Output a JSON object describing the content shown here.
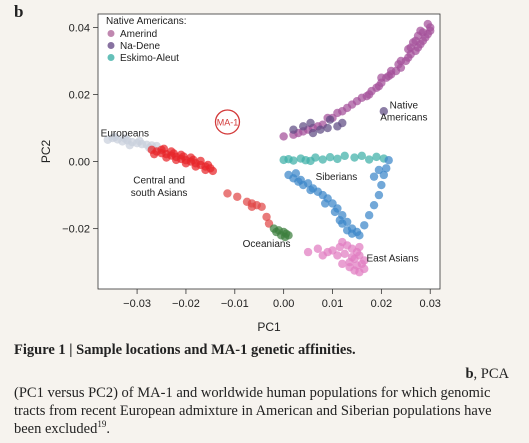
{
  "panel_label": "b",
  "caption": {
    "title": "Figure 1 | Sample locations and MA-1 genetic affinities.",
    "panel_ref": "b",
    "panel_suffix": ", PCA",
    "body": "(PC1 versus PC2) of MA-1 and worldwide human populations for which genomic tracts from recent European admixture in American and Siberian populations have been excluded",
    "ref": "19",
    "end": "."
  },
  "chart_data": {
    "type": "scatter",
    "xlabel": "PC1",
    "ylabel": "PC2",
    "xlim": [
      -0.038,
      0.032
    ],
    "ylim": [
      -0.038,
      0.044
    ],
    "xticks": [
      -0.03,
      -0.02,
      -0.01,
      0.0,
      0.01,
      0.02,
      0.03
    ],
    "xtick_labels": [
      "−0.03",
      "−0.02",
      "−0.01",
      "0.00",
      "0.01",
      "0.02",
      "0.03"
    ],
    "yticks": [
      -0.02,
      0.0,
      0.02,
      0.04
    ],
    "ytick_labels": [
      "−0.02",
      "0.00",
      "0.02",
      "0.04"
    ],
    "grid": false,
    "legend_position": "top-left",
    "legend": {
      "title": "Native Americans:",
      "entries": [
        {
          "name": "Amerind",
          "color": "#b06a9c"
        },
        {
          "name": "Na-Dene",
          "color": "#6a4f8a"
        },
        {
          "name": "Eskimo-Aleut",
          "color": "#3fb0a8"
        }
      ]
    },
    "annotations": [
      {
        "text": "MA-1",
        "x": -0.0115,
        "y": 0.0118,
        "color": "#d33a3a"
      },
      {
        "text": "Europeans",
        "x": -0.0325,
        "y": 0.0075
      },
      {
        "text": "Central and",
        "x": -0.0255,
        "y": -0.0065
      },
      {
        "text": "south Asians",
        "x": -0.0255,
        "y": -0.0102
      },
      {
        "text": "Oceanians",
        "x": -0.0035,
        "y": -0.0255
      },
      {
        "text": "Siberians",
        "x": 0.0108,
        "y": -0.0055
      },
      {
        "text": "East Asians",
        "x": 0.0223,
        "y": -0.0298
      },
      {
        "text": "Native",
        "x": 0.0246,
        "y": 0.0158
      },
      {
        "text": "Americans",
        "x": 0.0246,
        "y": 0.0122
      }
    ],
    "series": [
      {
        "group": "Amerind",
        "color": "#a3509a",
        "points": [
          [
            0.0,
            0.0075
          ],
          [
            0.002,
            0.008
          ],
          [
            0.004,
            0.009
          ],
          [
            0.006,
            0.01
          ],
          [
            0.008,
            0.011
          ],
          [
            0.009,
            0.013
          ],
          [
            0.011,
            0.0145
          ],
          [
            0.013,
            0.016
          ],
          [
            0.015,
            0.018
          ],
          [
            0.017,
            0.0195
          ],
          [
            0.018,
            0.021
          ],
          [
            0.019,
            0.022
          ],
          [
            0.02,
            0.0235
          ],
          [
            0.021,
            0.025
          ],
          [
            0.022,
            0.026
          ],
          [
            0.023,
            0.027
          ],
          [
            0.024,
            0.028
          ],
          [
            0.025,
            0.03
          ],
          [
            0.0255,
            0.031
          ],
          [
            0.026,
            0.032
          ],
          [
            0.027,
            0.033
          ],
          [
            0.0275,
            0.034
          ],
          [
            0.028,
            0.035
          ],
          [
            0.0285,
            0.036
          ],
          [
            0.029,
            0.037
          ],
          [
            0.0295,
            0.038
          ],
          [
            0.03,
            0.039
          ],
          [
            0.03,
            0.04
          ],
          [
            0.0295,
            0.041
          ],
          [
            0.028,
            0.039
          ],
          [
            0.027,
            0.036
          ],
          [
            0.026,
            0.034
          ],
          [
            0.024,
            0.03
          ],
          [
            0.022,
            0.027
          ],
          [
            0.02,
            0.025
          ],
          [
            0.016,
            0.019
          ],
          [
            0.014,
            0.017
          ],
          [
            0.012,
            0.015
          ],
          [
            0.01,
            0.013
          ],
          [
            0.007,
            0.0105
          ],
          [
            0.005,
            0.0095
          ],
          [
            0.003,
            0.0085
          ],
          [
            0.0275,
            0.0375
          ],
          [
            0.0265,
            0.0355
          ],
          [
            0.0255,
            0.0335
          ],
          [
            0.0235,
            0.029
          ],
          [
            0.0215,
            0.0255
          ],
          [
            0.0195,
            0.0225
          ],
          [
            0.0175,
            0.02
          ],
          [
            0.0285,
            0.0385
          ]
        ]
      },
      {
        "group": "Na-Dene",
        "color": "#5f4c84",
        "points": [
          [
            0.002,
            0.0095
          ],
          [
            0.004,
            0.0105
          ],
          [
            0.006,
            0.0085
          ],
          [
            0.0075,
            0.0095
          ],
          [
            0.009,
            0.01
          ],
          [
            0.011,
            0.0105
          ],
          [
            0.012,
            0.0115
          ],
          [
            0.0095,
            0.0125
          ],
          [
            0.0055,
            0.0115
          ],
          [
            0.0205,
            0.015
          ]
        ]
      },
      {
        "group": "Eskimo-Aleut",
        "color": "#3fb0a8",
        "points": [
          [
            0.0,
            0.0005
          ],
          [
            0.001,
            0.0007
          ],
          [
            0.002,
            0.0003
          ],
          [
            0.0035,
            0.0009
          ],
          [
            0.0045,
            0.0004
          ],
          [
            0.0065,
            0.0012
          ],
          [
            0.008,
            0.0006
          ],
          [
            0.0095,
            0.0013
          ],
          [
            0.011,
            0.0008
          ],
          [
            0.0125,
            0.0017
          ],
          [
            0.0145,
            0.0012
          ],
          [
            0.016,
            0.0017
          ],
          [
            0.0175,
            0.0006
          ],
          [
            0.019,
            0.0014
          ],
          [
            0.0205,
            0.0009
          ],
          [
            0.0055,
            0.0002
          ]
        ]
      },
      {
        "group": "Siberians",
        "color": "#3c86c9",
        "points": [
          [
            0.001,
            -0.004
          ],
          [
            0.002,
            -0.005
          ],
          [
            0.003,
            -0.006
          ],
          [
            0.004,
            -0.007
          ],
          [
            0.005,
            -0.0065
          ],
          [
            0.006,
            -0.008
          ],
          [
            0.007,
            -0.009
          ],
          [
            0.008,
            -0.01
          ],
          [
            0.009,
            -0.011
          ],
          [
            0.01,
            -0.0125
          ],
          [
            0.011,
            -0.014
          ],
          [
            0.012,
            -0.016
          ],
          [
            0.013,
            -0.018
          ],
          [
            0.014,
            -0.02
          ],
          [
            0.015,
            -0.021
          ],
          [
            0.0155,
            -0.022
          ],
          [
            0.014,
            -0.0215
          ],
          [
            0.013,
            -0.0205
          ],
          [
            0.012,
            -0.0185
          ],
          [
            0.0165,
            -0.019
          ],
          [
            0.0175,
            -0.016
          ],
          [
            0.0185,
            -0.013
          ],
          [
            0.0195,
            -0.01
          ],
          [
            0.02,
            -0.007
          ],
          [
            0.0205,
            -0.004
          ],
          [
            0.021,
            -0.002
          ],
          [
            0.0195,
            -0.0025
          ],
          [
            0.0185,
            -0.0045
          ],
          [
            0.0215,
            0.0004
          ],
          [
            0.0055,
            -0.0085
          ],
          [
            0.0085,
            -0.0125
          ],
          [
            0.0105,
            -0.015
          ],
          [
            0.0025,
            -0.0035
          ],
          [
            0.0035,
            -0.0055
          ],
          [
            0.0115,
            -0.0175
          ]
        ]
      },
      {
        "group": "East Asians",
        "color": "#e07cc0",
        "points": [
          [
            0.012,
            -0.024
          ],
          [
            0.013,
            -0.025
          ],
          [
            0.014,
            -0.026
          ],
          [
            0.015,
            -0.027
          ],
          [
            0.0155,
            -0.028
          ],
          [
            0.0145,
            -0.029
          ],
          [
            0.0135,
            -0.03
          ],
          [
            0.015,
            -0.031
          ],
          [
            0.016,
            -0.0305
          ],
          [
            0.0165,
            -0.032
          ],
          [
            0.0155,
            -0.033
          ],
          [
            0.0145,
            -0.0325
          ],
          [
            0.0135,
            -0.0315
          ],
          [
            0.012,
            -0.0305
          ],
          [
            0.011,
            -0.028
          ],
          [
            0.009,
            -0.027
          ],
          [
            0.007,
            -0.026
          ],
          [
            0.005,
            -0.027
          ],
          [
            0.008,
            -0.028
          ],
          [
            0.01,
            -0.0265
          ],
          [
            0.0125,
            -0.0275
          ],
          [
            0.014,
            -0.0285
          ],
          [
            0.0155,
            -0.0255
          ],
          [
            0.0165,
            -0.0295
          ],
          [
            0.0115,
            -0.0255
          ]
        ]
      },
      {
        "group": "Europeans",
        "color": "#c9d0dc",
        "points": [
          [
            -0.036,
            0.0065
          ],
          [
            -0.035,
            0.007
          ],
          [
            -0.034,
            0.0066
          ],
          [
            -0.033,
            0.006
          ],
          [
            -0.032,
            0.0063
          ],
          [
            -0.031,
            0.0058
          ],
          [
            -0.03,
            0.0055
          ],
          [
            -0.029,
            0.0052
          ],
          [
            -0.028,
            0.005
          ],
          [
            -0.027,
            0.0048
          ],
          [
            -0.026,
            0.0046
          ],
          [
            -0.0295,
            0.0061
          ],
          [
            -0.0325,
            0.0069
          ],
          [
            -0.0345,
            0.0073
          ],
          [
            -0.0275,
            0.0041
          ],
          [
            -0.0315,
            0.0049
          ]
        ]
      },
      {
        "group": "Central and south Asians",
        "color": "#e8262a",
        "points": [
          [
            -0.027,
            0.0035
          ],
          [
            -0.026,
            0.003
          ],
          [
            -0.025,
            0.0025
          ],
          [
            -0.024,
            0.0022
          ],
          [
            -0.023,
            0.0018
          ],
          [
            -0.022,
            0.0014
          ],
          [
            -0.021,
            0.0008
          ],
          [
            -0.02,
            0.0004
          ],
          [
            -0.019,
            0.0
          ],
          [
            -0.018,
            -0.0005
          ],
          [
            -0.017,
            -0.001
          ],
          [
            -0.016,
            -0.0015
          ],
          [
            -0.015,
            -0.002
          ],
          [
            -0.0145,
            -0.0028
          ],
          [
            -0.025,
            0.0035
          ],
          [
            -0.023,
            0.003
          ],
          [
            -0.021,
            0.002
          ],
          [
            -0.019,
            0.0012
          ],
          [
            -0.017,
            0.0002
          ],
          [
            -0.024,
            0.0012
          ],
          [
            -0.022,
            0.0005
          ],
          [
            -0.02,
            -0.0005
          ],
          [
            -0.018,
            -0.0015
          ],
          [
            -0.016,
            -0.0025
          ],
          [
            -0.0155,
            -0.001
          ],
          [
            -0.0265,
            0.0022
          ],
          [
            -0.0245,
            0.0038
          ],
          [
            -0.0225,
            0.0024
          ],
          [
            -0.0205,
            0.0015
          ],
          [
            -0.0185,
            0.0005
          ]
        ]
      },
      {
        "group": "Central and south Asians",
        "color": "#e04848",
        "points": [
          [
            -0.0115,
            -0.0095
          ],
          [
            -0.0095,
            -0.0105
          ],
          [
            -0.0075,
            -0.012
          ],
          [
            -0.0065,
            -0.0125
          ],
          [
            -0.0055,
            -0.013
          ],
          [
            -0.0045,
            -0.0135
          ],
          [
            -0.0035,
            -0.0165
          ],
          [
            -0.003,
            -0.0185
          ],
          [
            -0.0065,
            -0.0135
          ]
        ]
      },
      {
        "group": "Oceanians",
        "color": "#3d7f3f",
        "points": [
          [
            -0.002,
            -0.02
          ],
          [
            -0.001,
            -0.0205
          ],
          [
            0.0,
            -0.021
          ],
          [
            0.0005,
            -0.0215
          ],
          [
            0.001,
            -0.022
          ],
          [
            -0.0005,
            -0.022
          ],
          [
            -0.0015,
            -0.021
          ],
          [
            0.0003,
            -0.0225
          ]
        ]
      }
    ]
  }
}
